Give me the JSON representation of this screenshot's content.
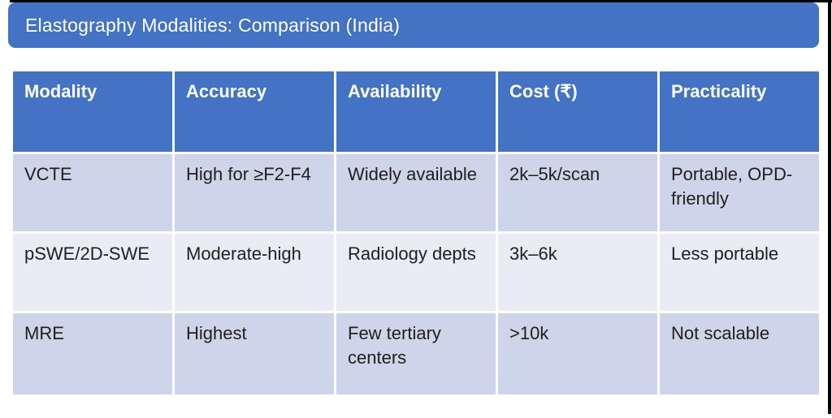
{
  "slide": {
    "title": "Elastography Modalities: Comparison (India)"
  },
  "colors": {
    "accent_blue": "#4472C4",
    "band_dark": "#CED4E9",
    "band_light": "#E9EBF5",
    "header_text": "#FFFFFF",
    "body_text": "#1F1F1F",
    "frame": "#000000"
  },
  "table": {
    "columns": [
      "Modality",
      "Accuracy",
      "Availability",
      "Cost (₹)",
      "Practicality"
    ],
    "rows": [
      [
        "VCTE",
        "High for ≥F2-F4",
        "Widely available",
        "2k–5k/scan",
        "Portable, OPD-friendly"
      ],
      [
        "pSWE/2D-SWE",
        "Moderate-high",
        "Radiology depts",
        "3k–6k",
        "Less portable"
      ],
      [
        "MRE",
        "Highest",
        "Few tertiary centers",
        ">10k",
        "Not scalable"
      ]
    ]
  }
}
